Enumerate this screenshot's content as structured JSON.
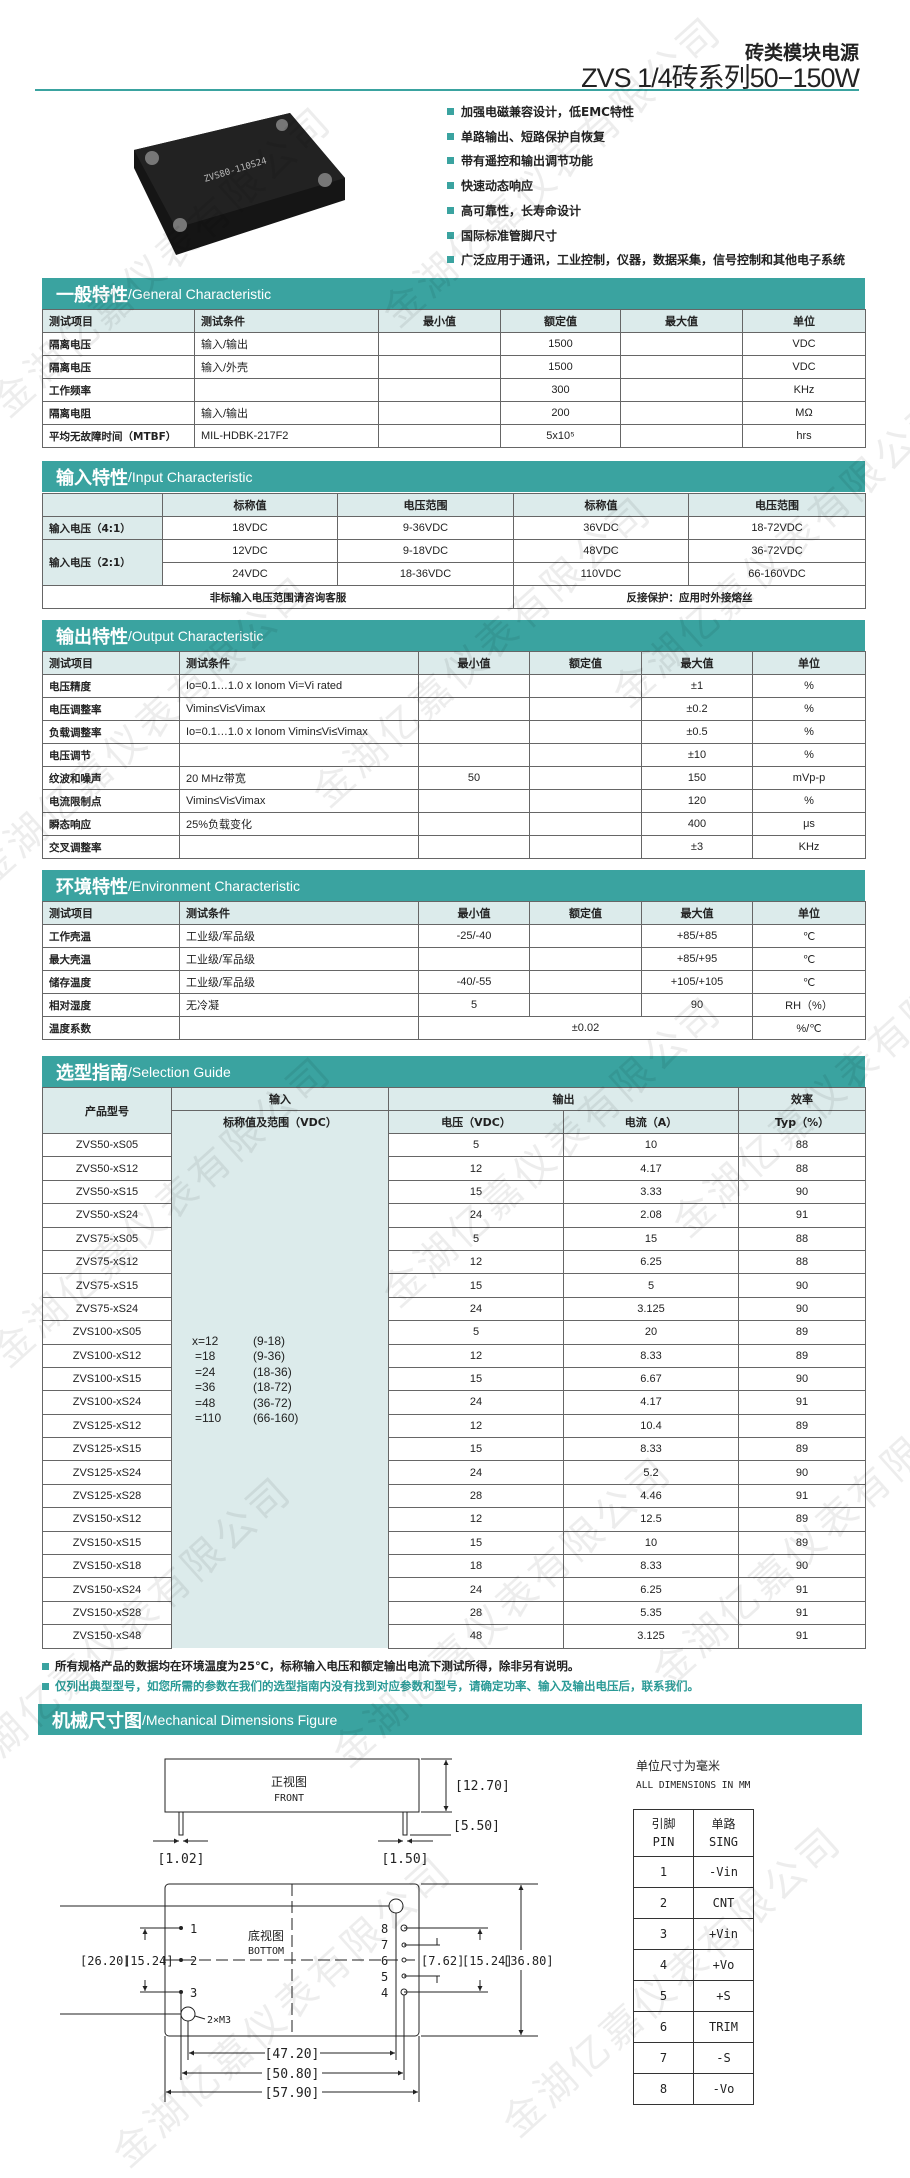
{
  "header": {
    "title": "砖类模块电源",
    "subtitle": "ZVS 1/4砖系列50−150W"
  },
  "product_image": {
    "label": "ZVS80-110S24",
    "pins": [
      "-Vin",
      "CNT",
      "+Vin",
      "-Vo",
      "-S",
      "TRIM",
      "+S",
      "+Vo"
    ]
  },
  "features": [
    "加强电磁兼容设计，低EMC特性",
    "单路输出、短路保护自恢复",
    "带有遥控和输出调节功能",
    "快速动态响应",
    "高可靠性，长寿命设计",
    "国际标准管脚尺寸",
    "广泛应用于通讯，工业控制，仪器，数据采集，信号控制和其他电子系统"
  ],
  "colors": {
    "accent": "#3aa3a0",
    "header_cell": "#dcebeb"
  },
  "general": {
    "title_cn": "一般特性",
    "title_en": "/General Characteristic",
    "headers": [
      "测试项目",
      "测试条件",
      "最小值",
      "额定值",
      "最大值",
      "单位"
    ],
    "rows": [
      [
        "隔离电压",
        "输入/输出",
        "",
        "1500",
        "",
        "VDC"
      ],
      [
        "隔离电压",
        "输入/外壳",
        "",
        "1500",
        "",
        "VDC"
      ],
      [
        "工作频率",
        "",
        "",
        "300",
        "",
        "KHz"
      ],
      [
        "隔离电阻",
        "输入/输出",
        "",
        "200",
        "",
        "MΩ"
      ],
      [
        "平均无故障时间（MTBF）",
        "MIL-HDBK-217F2",
        "",
        "5x10⁵",
        "",
        "hrs"
      ]
    ]
  },
  "input": {
    "title_cn": "输入特性",
    "title_en": "/Input Characteristic",
    "headers": [
      "",
      "标称值",
      "电压范围",
      "标称值",
      "电压范围"
    ],
    "row_labels": [
      "输入电压（4:1）",
      "输入电压（2:1）"
    ],
    "rows": [
      [
        "18VDC",
        "9-36VDC",
        "36VDC",
        "18-72VDC"
      ],
      [
        "12VDC",
        "9-18VDC",
        "48VDC",
        "36-72VDC"
      ],
      [
        "24VDC",
        "18-36VDC",
        "110VDC",
        "66-160VDC"
      ]
    ],
    "notes": [
      "非标输入电压范围请咨询客服",
      "反接保护：应用时外接熔丝"
    ]
  },
  "output": {
    "title_cn": "输出特性",
    "title_en": "/Output Characteristic",
    "headers": [
      "测试项目",
      "测试条件",
      "最小值",
      "额定值",
      "最大值",
      "单位"
    ],
    "rows": [
      [
        "电压精度",
        "Io=0.1…1.0 x Ionom Vi=Vi rated",
        "",
        "",
        "±1",
        "%"
      ],
      [
        "电压调整率",
        "Vimin≤Vi≤Vimax",
        "",
        "",
        "±0.2",
        "%"
      ],
      [
        "负载调整率",
        "Io=0.1…1.0 x Ionom Vimin≤Vi≤Vimax",
        "",
        "",
        "±0.5",
        "%"
      ],
      [
        "电压调节",
        "",
        "",
        "",
        "±10",
        "%"
      ],
      [
        "纹波和噪声",
        "20 MHz带宽",
        "50",
        "",
        "150",
        "mVp-p"
      ],
      [
        "电流限制点",
        "Vimin≤Vi≤Vimax",
        "",
        "",
        "120",
        "%"
      ],
      [
        "瞬态响应",
        "25%负载变化",
        "",
        "",
        "400",
        "μs"
      ],
      [
        "交叉调整率",
        "",
        "",
        "",
        "±3",
        "KHz"
      ]
    ]
  },
  "environment": {
    "title_cn": "环境特性",
    "title_en": "/Environment Characteristic",
    "headers": [
      "测试项目",
      "测试条件",
      "最小值",
      "额定值",
      "最大值",
      "单位"
    ],
    "rows": [
      [
        "工作壳温",
        "工业级/军品级",
        "-25/-40",
        "",
        "+85/+85",
        "℃"
      ],
      [
        "最大壳温",
        "工业级/军品级",
        "",
        "",
        "+85/+95",
        "℃"
      ],
      [
        "储存温度",
        "工业级/军品级",
        "-40/-55",
        "",
        "+105/+105",
        "℃"
      ],
      [
        "相对湿度",
        "无冷凝",
        "5",
        "",
        "90",
        "RH（%）"
      ]
    ],
    "last_row": {
      "item": "温度系数",
      "condition": "",
      "value": "±0.02",
      "unit": "%/℃"
    }
  },
  "selection": {
    "title_cn": "选型指南",
    "title_en": "/Selection Guide",
    "headers": {
      "model": "产品型号",
      "input": "输入",
      "output": "输出",
      "efficiency": "效率",
      "input_sub": "标称值及范围（VDC）",
      "voltage": "电压（VDC）",
      "current": "电流（A）",
      "typ": "Typ（%）"
    },
    "input_options": [
      [
        "x=12",
        "(9-18)"
      ],
      [
        "=18",
        "(9-36)"
      ],
      [
        "=24",
        "(18-36)"
      ],
      [
        "=36",
        "(18-72)"
      ],
      [
        "=48",
        "(36-72)"
      ],
      [
        "=110",
        "(66-160)"
      ]
    ],
    "rows": [
      [
        "ZVS50-xS05",
        "5",
        "10",
        "88"
      ],
      [
        "ZVS50-xS12",
        "12",
        "4.17",
        "88"
      ],
      [
        "ZVS50-xS15",
        "15",
        "3.33",
        "90"
      ],
      [
        "ZVS50-xS24",
        "24",
        "2.08",
        "91"
      ],
      [
        "ZVS75-xS05",
        "5",
        "15",
        "88"
      ],
      [
        "ZVS75-xS12",
        "12",
        "6.25",
        "88"
      ],
      [
        "ZVS75-xS15",
        "15",
        "5",
        "90"
      ],
      [
        "ZVS75-xS24",
        "24",
        "3.125",
        "90"
      ],
      [
        "ZVS100-xS05",
        "5",
        "20",
        "89"
      ],
      [
        "ZVS100-xS12",
        "12",
        "8.33",
        "89"
      ],
      [
        "ZVS100-xS15",
        "15",
        "6.67",
        "90"
      ],
      [
        "ZVS100-xS24",
        "24",
        "4.17",
        "91"
      ],
      [
        "ZVS125-xS12",
        "12",
        "10.4",
        "89"
      ],
      [
        "ZVS125-xS15",
        "15",
        "8.33",
        "89"
      ],
      [
        "ZVS125-xS24",
        "24",
        "5.2",
        "90"
      ],
      [
        "ZVS125-xS28",
        "28",
        "4.46",
        "91"
      ],
      [
        "ZVS150-xS12",
        "12",
        "12.5",
        "89"
      ],
      [
        "ZVS150-xS15",
        "15",
        "10",
        "89"
      ],
      [
        "ZVS150-xS18",
        "18",
        "8.33",
        "90"
      ],
      [
        "ZVS150-xS24",
        "24",
        "6.25",
        "91"
      ],
      [
        "ZVS150-xS28",
        "28",
        "5.35",
        "91"
      ],
      [
        "ZVS150-xS48",
        "48",
        "3.125",
        "91"
      ]
    ]
  },
  "notes": [
    "所有规格产品的数据均在环境温度为25℃，标称输入电压和额定输出电流下测试所得，除非另有说明。",
    "仅列出典型型号，如您所需的参数在我们的选型指南内没有找到对应参数和型号，请确定功率、输入及输出电压后，联系我们。"
  ],
  "mechanical": {
    "title_cn": "机械尺寸图",
    "title_en": "/Mechanical Dimensions Figure",
    "front_cn": "正视图",
    "front_en": "FRONT",
    "bottom_cn": "底视图",
    "bottom_en": "BOTTOM",
    "dims": {
      "height": "[12.70]",
      "pin_len": "[5.50]",
      "pin_d1": "[1.02]",
      "pin_d2": "[1.50]",
      "left_outer": "[26.20]",
      "left_inner": "[15.24]",
      "right_762": "[7.62]",
      "right_1524": "[15.24]",
      "right_3680": "[36.80]",
      "w1": "[47.20]",
      "w2": "[50.80]",
      "w3": "[57.90]",
      "hole": "2×M3"
    },
    "pin_numbers_left": [
      "1",
      "2",
      "3"
    ],
    "pin_numbers_right": [
      "8",
      "7",
      "6",
      "5",
      "4"
    ],
    "unit_cn": "单位尺寸为毫米",
    "unit_en": "ALL DIMENSIONS IN MM",
    "pin_table": {
      "h1_cn": "引脚",
      "h1_en": "PIN",
      "h2_cn": "单路",
      "h2_en": "SING",
      "rows": [
        [
          "1",
          "-Vin"
        ],
        [
          "2",
          "CNT"
        ],
        [
          "3",
          "+Vin"
        ],
        [
          "4",
          "+Vo"
        ],
        [
          "5",
          "+S"
        ],
        [
          "6",
          "TRIM"
        ],
        [
          "7",
          "-S"
        ],
        [
          "8",
          "-Vo"
        ]
      ]
    }
  },
  "watermark": "金湖亿嘉仪表有限公司"
}
